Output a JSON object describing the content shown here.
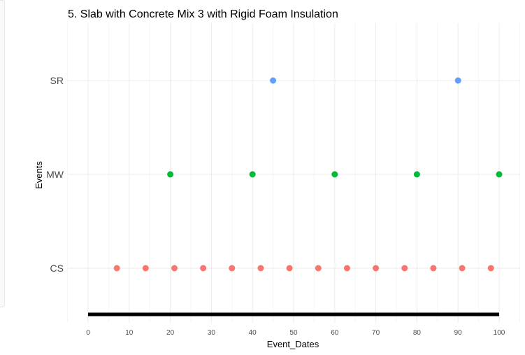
{
  "chart_data": {
    "type": "scatter",
    "title": "5. Slab with Concrete Mix 3 with Rigid Foam Insulation",
    "xlabel": "Event_Dates",
    "ylabel": "Events",
    "xlim": [
      0,
      100
    ],
    "x_ticks": [
      "0",
      "10",
      "20",
      "30",
      "40",
      "50",
      "60",
      "70",
      "80",
      "90",
      "100"
    ],
    "y_categories": [
      "CS",
      "MW",
      "SR"
    ],
    "grid": true,
    "legend": "none",
    "series": [
      {
        "category": "SR",
        "color": "#619CFF",
        "x": [
          45,
          90
        ]
      },
      {
        "category": "MW",
        "color": "#00BA38",
        "x": [
          20,
          40,
          60,
          80,
          100
        ]
      },
      {
        "category": "CS",
        "color": "#F8766D",
        "x": [
          7,
          14,
          21,
          28,
          35,
          42,
          49,
          56,
          63,
          70,
          77,
          84,
          91,
          98
        ]
      }
    ],
    "timeline": {
      "color": "#000000",
      "x": [
        0,
        100
      ]
    }
  }
}
